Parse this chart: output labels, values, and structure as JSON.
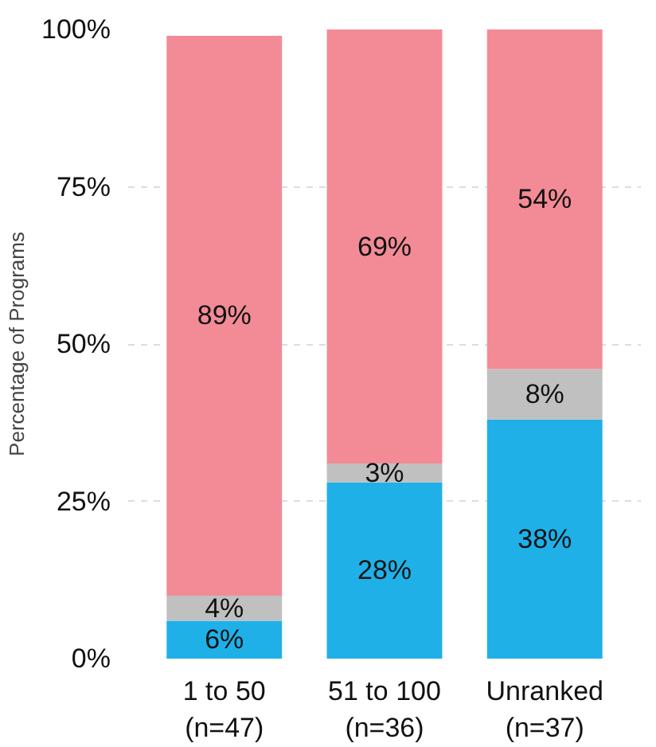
{
  "chart_data": {
    "type": "bar",
    "stacked": true,
    "ylabel": "Percentage of Programs",
    "categories": [
      "1 to 50\n(n=47)",
      "51 to 100\n(n=36)",
      "Unranked\n(n=37)"
    ],
    "series": [
      {
        "color": "#1fb0e8",
        "values": [
          6,
          28,
          38
        ],
        "value_labels": [
          "6%",
          "28%",
          "38%"
        ]
      },
      {
        "color": "#c0c0c0",
        "values": [
          4,
          3,
          8
        ],
        "value_labels": [
          "4%",
          "3%",
          "8%"
        ]
      },
      {
        "color": "#f28b96",
        "values": [
          89,
          69,
          54
        ],
        "value_labels": [
          "89%",
          "69%",
          "54%"
        ]
      }
    ],
    "ylim": [
      0,
      100
    ],
    "yticks": [
      {
        "value": 0,
        "label": "0%"
      },
      {
        "value": 25,
        "label": "25%"
      },
      {
        "value": 50,
        "label": "50%"
      },
      {
        "value": 75,
        "label": "75%"
      },
      {
        "value": 100,
        "label": "100%"
      }
    ],
    "grid": "y"
  }
}
